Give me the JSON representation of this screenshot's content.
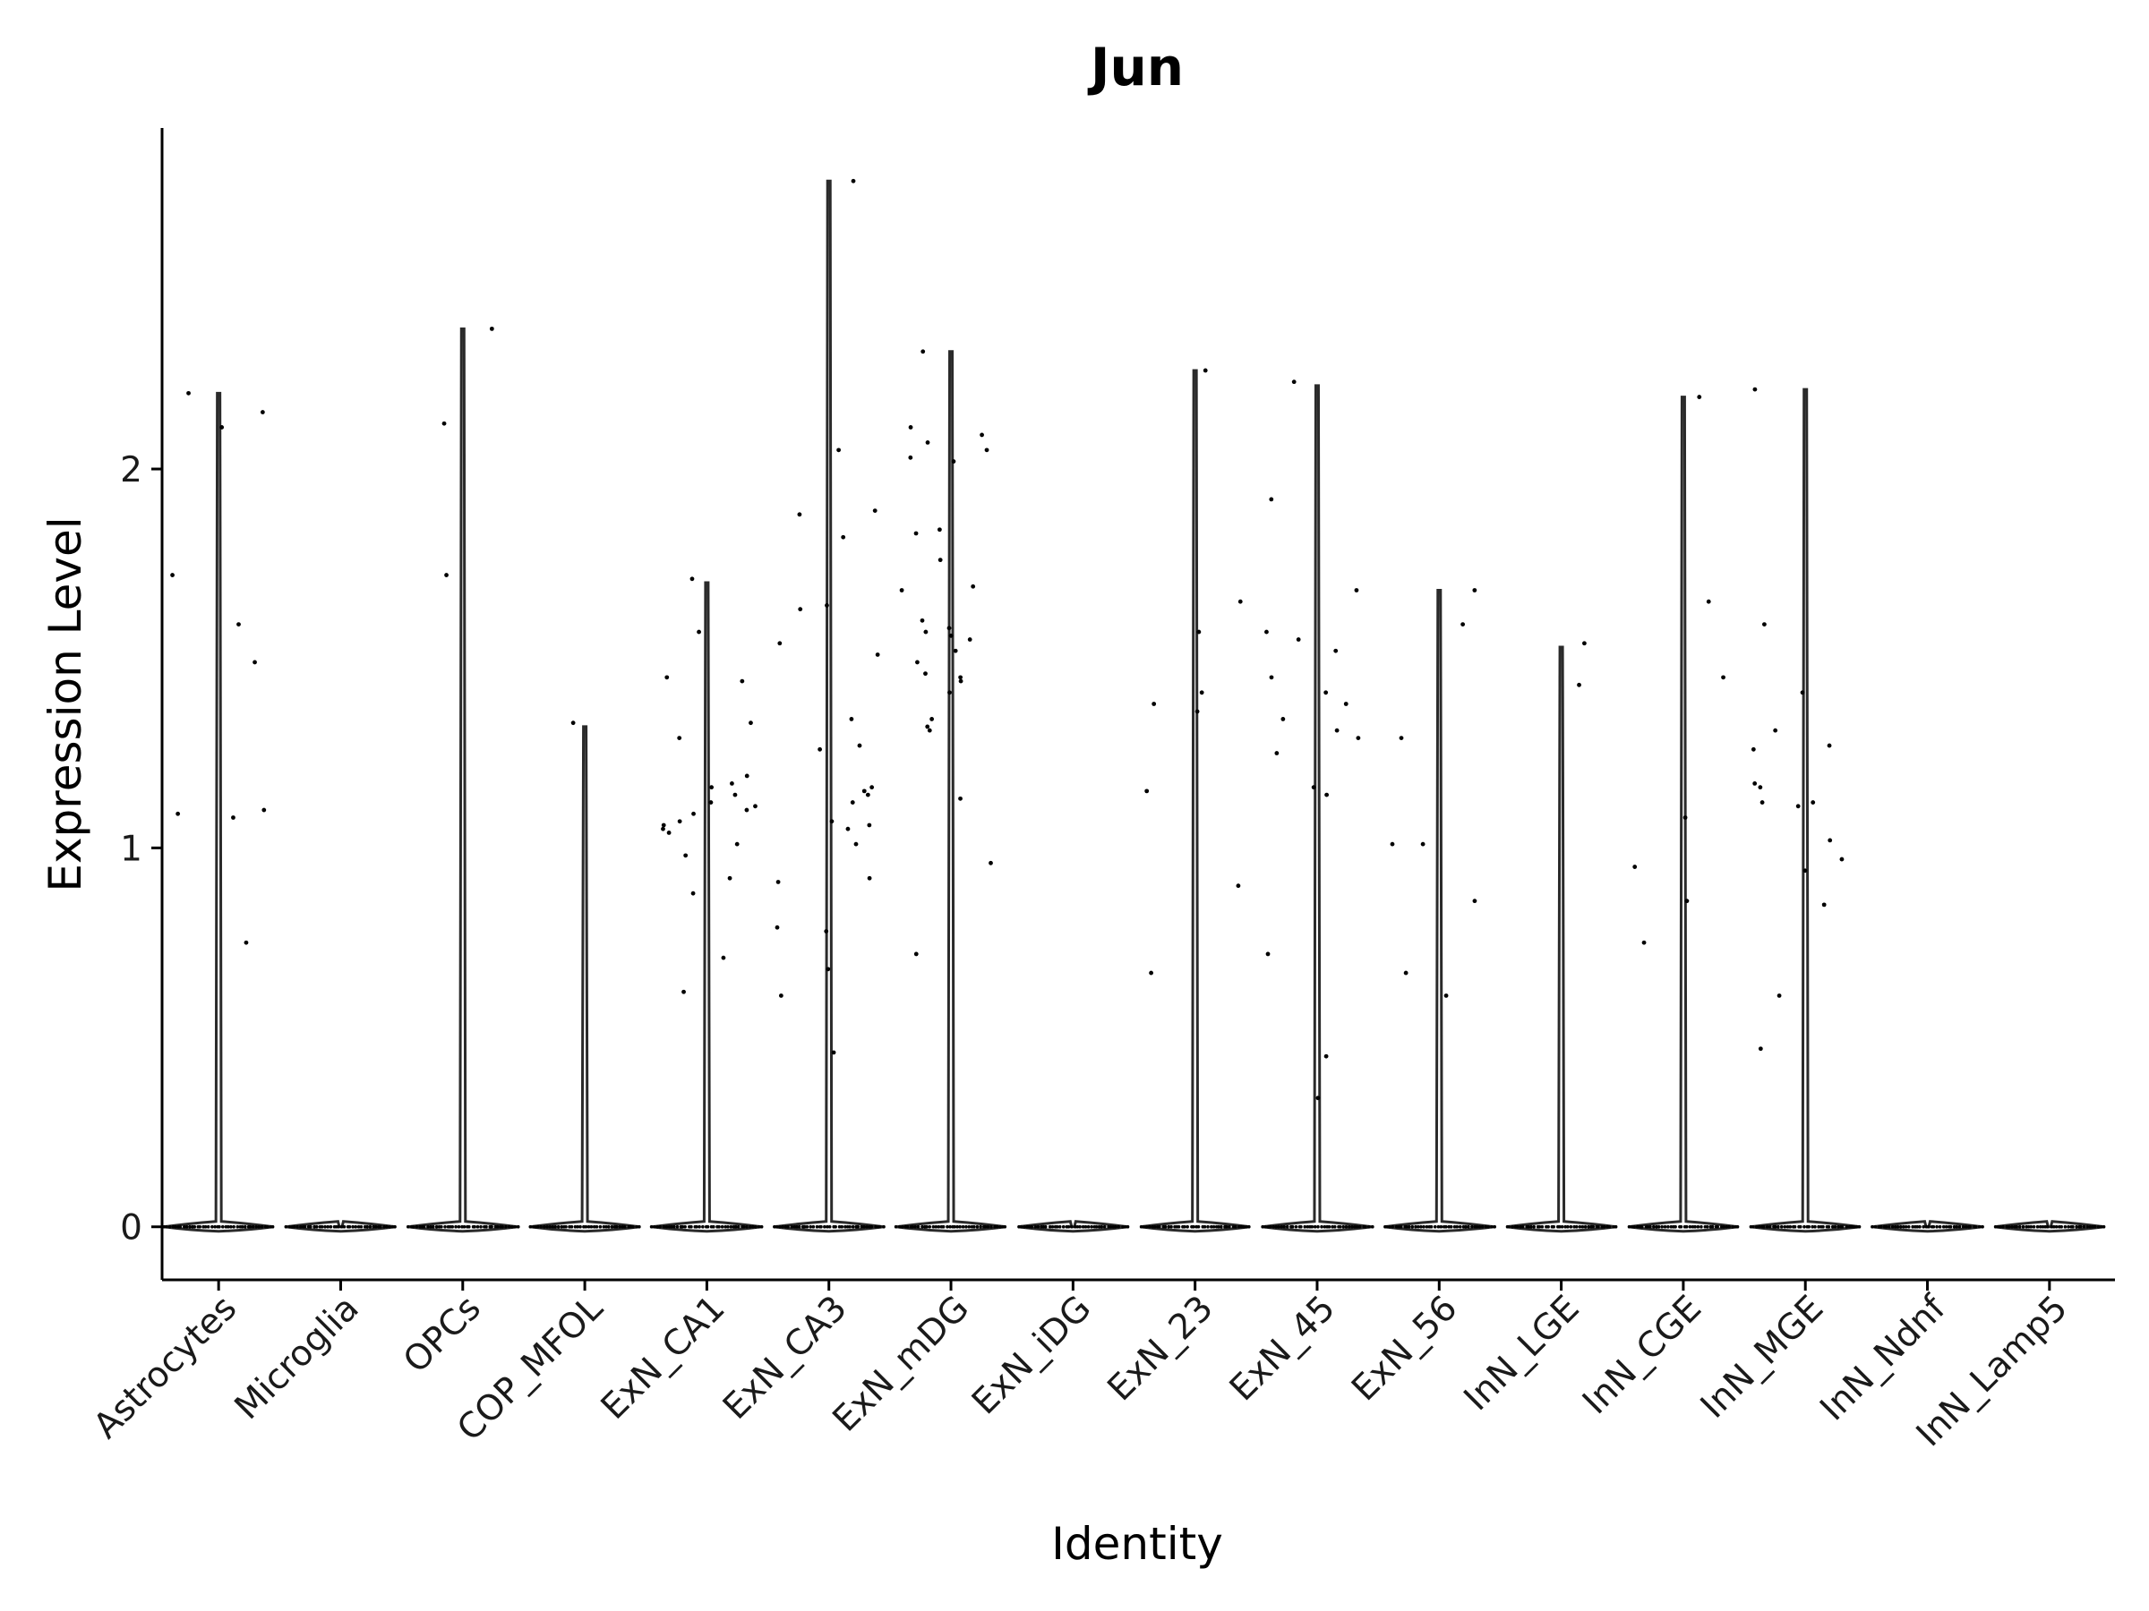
{
  "chart_data": {
    "type": "violin",
    "title": "Jun",
    "xlabel": "Identity",
    "ylabel": "Expression Level",
    "ylim": [
      -0.14,
      2.9
    ],
    "yticks": [
      0,
      1,
      2
    ],
    "grid": false,
    "legend": "none",
    "colors": {
      "violin": "#2a2a2a",
      "point": "#000000",
      "axis": "#000000"
    },
    "categories": [
      "Astrocytes",
      "Microglia",
      "OPCs",
      "COP_MFOL",
      "ExN_CA1",
      "ExN_CA3",
      "ExN_mDG",
      "ExN_iDG",
      "ExN_23",
      "ExN_45",
      "ExN_56",
      "InN_LGE",
      "InN_CGE",
      "InN_MGE",
      "InN_Ndnf",
      "InN_Lamp5"
    ],
    "violins": [
      {
        "name": "Astrocytes",
        "max": 2.2
      },
      {
        "name": "Microglia",
        "max": 0
      },
      {
        "name": "OPCs",
        "max": 2.37
      },
      {
        "name": "COP_MFOL",
        "max": 1.32
      },
      {
        "name": "ExN_CA1",
        "max": 1.7
      },
      {
        "name": "ExN_CA3",
        "max": 2.76
      },
      {
        "name": "ExN_mDG",
        "max": 2.31
      },
      {
        "name": "ExN_iDG",
        "max": 0
      },
      {
        "name": "ExN_23",
        "max": 2.26
      },
      {
        "name": "ExN_45",
        "max": 2.22
      },
      {
        "name": "ExN_56",
        "max": 1.68
      },
      {
        "name": "InN_LGE",
        "max": 1.53
      },
      {
        "name": "InN_CGE",
        "max": 2.19
      },
      {
        "name": "InN_MGE",
        "max": 2.21
      },
      {
        "name": "InN_Ndnf",
        "max": 0
      },
      {
        "name": "InN_Lamp5",
        "max": 0
      }
    ],
    "points": [
      {
        "category": "Astrocytes",
        "values": [
          2.2,
          2.11,
          2.15,
          1.72,
          1.59,
          1.49,
          1.09,
          1.08,
          1.1,
          0.75
        ]
      },
      {
        "category": "Microglia",
        "values": []
      },
      {
        "category": "OPCs",
        "values": [
          2.37,
          2.12,
          1.72
        ]
      },
      {
        "category": "COP_MFOL",
        "values": [
          1.33
        ]
      },
      {
        "category": "ExN_CA1",
        "values": [
          1.71,
          1.57,
          1.44,
          1.45,
          1.33,
          1.29,
          1.19,
          1.17,
          1.16,
          1.14,
          1.12,
          1.11,
          1.1,
          1.09,
          1.07,
          1.06,
          1.05,
          1.04,
          1.01,
          0.98,
          0.92,
          0.88,
          0.71,
          0.62
        ]
      },
      {
        "category": "ExN_CA3",
        "values": [
          2.76,
          2.05,
          1.89,
          1.88,
          1.82,
          1.64,
          1.63,
          1.54,
          1.51,
          1.34,
          1.27,
          1.26,
          1.16,
          1.15,
          1.14,
          1.12,
          1.07,
          1.06,
          1.05,
          1.01,
          0.92,
          0.91,
          0.79,
          0.78,
          0.68,
          0.61,
          0.46
        ]
      },
      {
        "category": "ExN_mDG",
        "values": [
          2.31,
          2.11,
          2.09,
          2.07,
          2.05,
          2.03,
          2.02,
          1.84,
          1.83,
          1.76,
          1.69,
          1.68,
          1.6,
          1.58,
          1.57,
          1.56,
          1.55,
          1.52,
          1.49,
          1.46,
          1.45,
          1.44,
          1.41,
          1.34,
          1.32,
          1.31,
          1.13,
          0.96,
          0.72
        ]
      },
      {
        "category": "ExN_iDG",
        "values": []
      },
      {
        "category": "ExN_23",
        "values": [
          2.26,
          1.65,
          1.57,
          1.41,
          1.38,
          1.36,
          1.15,
          0.9,
          0.67
        ]
      },
      {
        "category": "ExN_45",
        "values": [
          2.23,
          1.92,
          1.68,
          1.57,
          1.55,
          1.52,
          1.45,
          1.41,
          1.38,
          1.34,
          1.31,
          1.29,
          1.25,
          1.16,
          1.14,
          0.72,
          0.45,
          0.34
        ]
      },
      {
        "category": "ExN_56",
        "values": [
          1.68,
          1.59,
          1.29,
          1.01,
          1.01,
          0.86,
          0.67,
          0.61
        ]
      },
      {
        "category": "InN_LGE",
        "values": [
          1.54,
          1.43
        ]
      },
      {
        "category": "InN_CGE",
        "values": [
          2.19,
          1.65,
          1.45,
          1.08,
          0.95,
          0.86,
          0.75
        ]
      },
      {
        "category": "InN_MGE",
        "values": [
          2.21,
          1.59,
          1.41,
          1.31,
          1.27,
          1.26,
          1.17,
          1.16,
          1.12,
          1.12,
          1.11,
          1.02,
          0.97,
          0.94,
          0.85,
          0.61,
          0.47
        ]
      },
      {
        "category": "InN_Ndnf",
        "values": []
      },
      {
        "category": "InN_Lamp5",
        "values": []
      }
    ]
  }
}
